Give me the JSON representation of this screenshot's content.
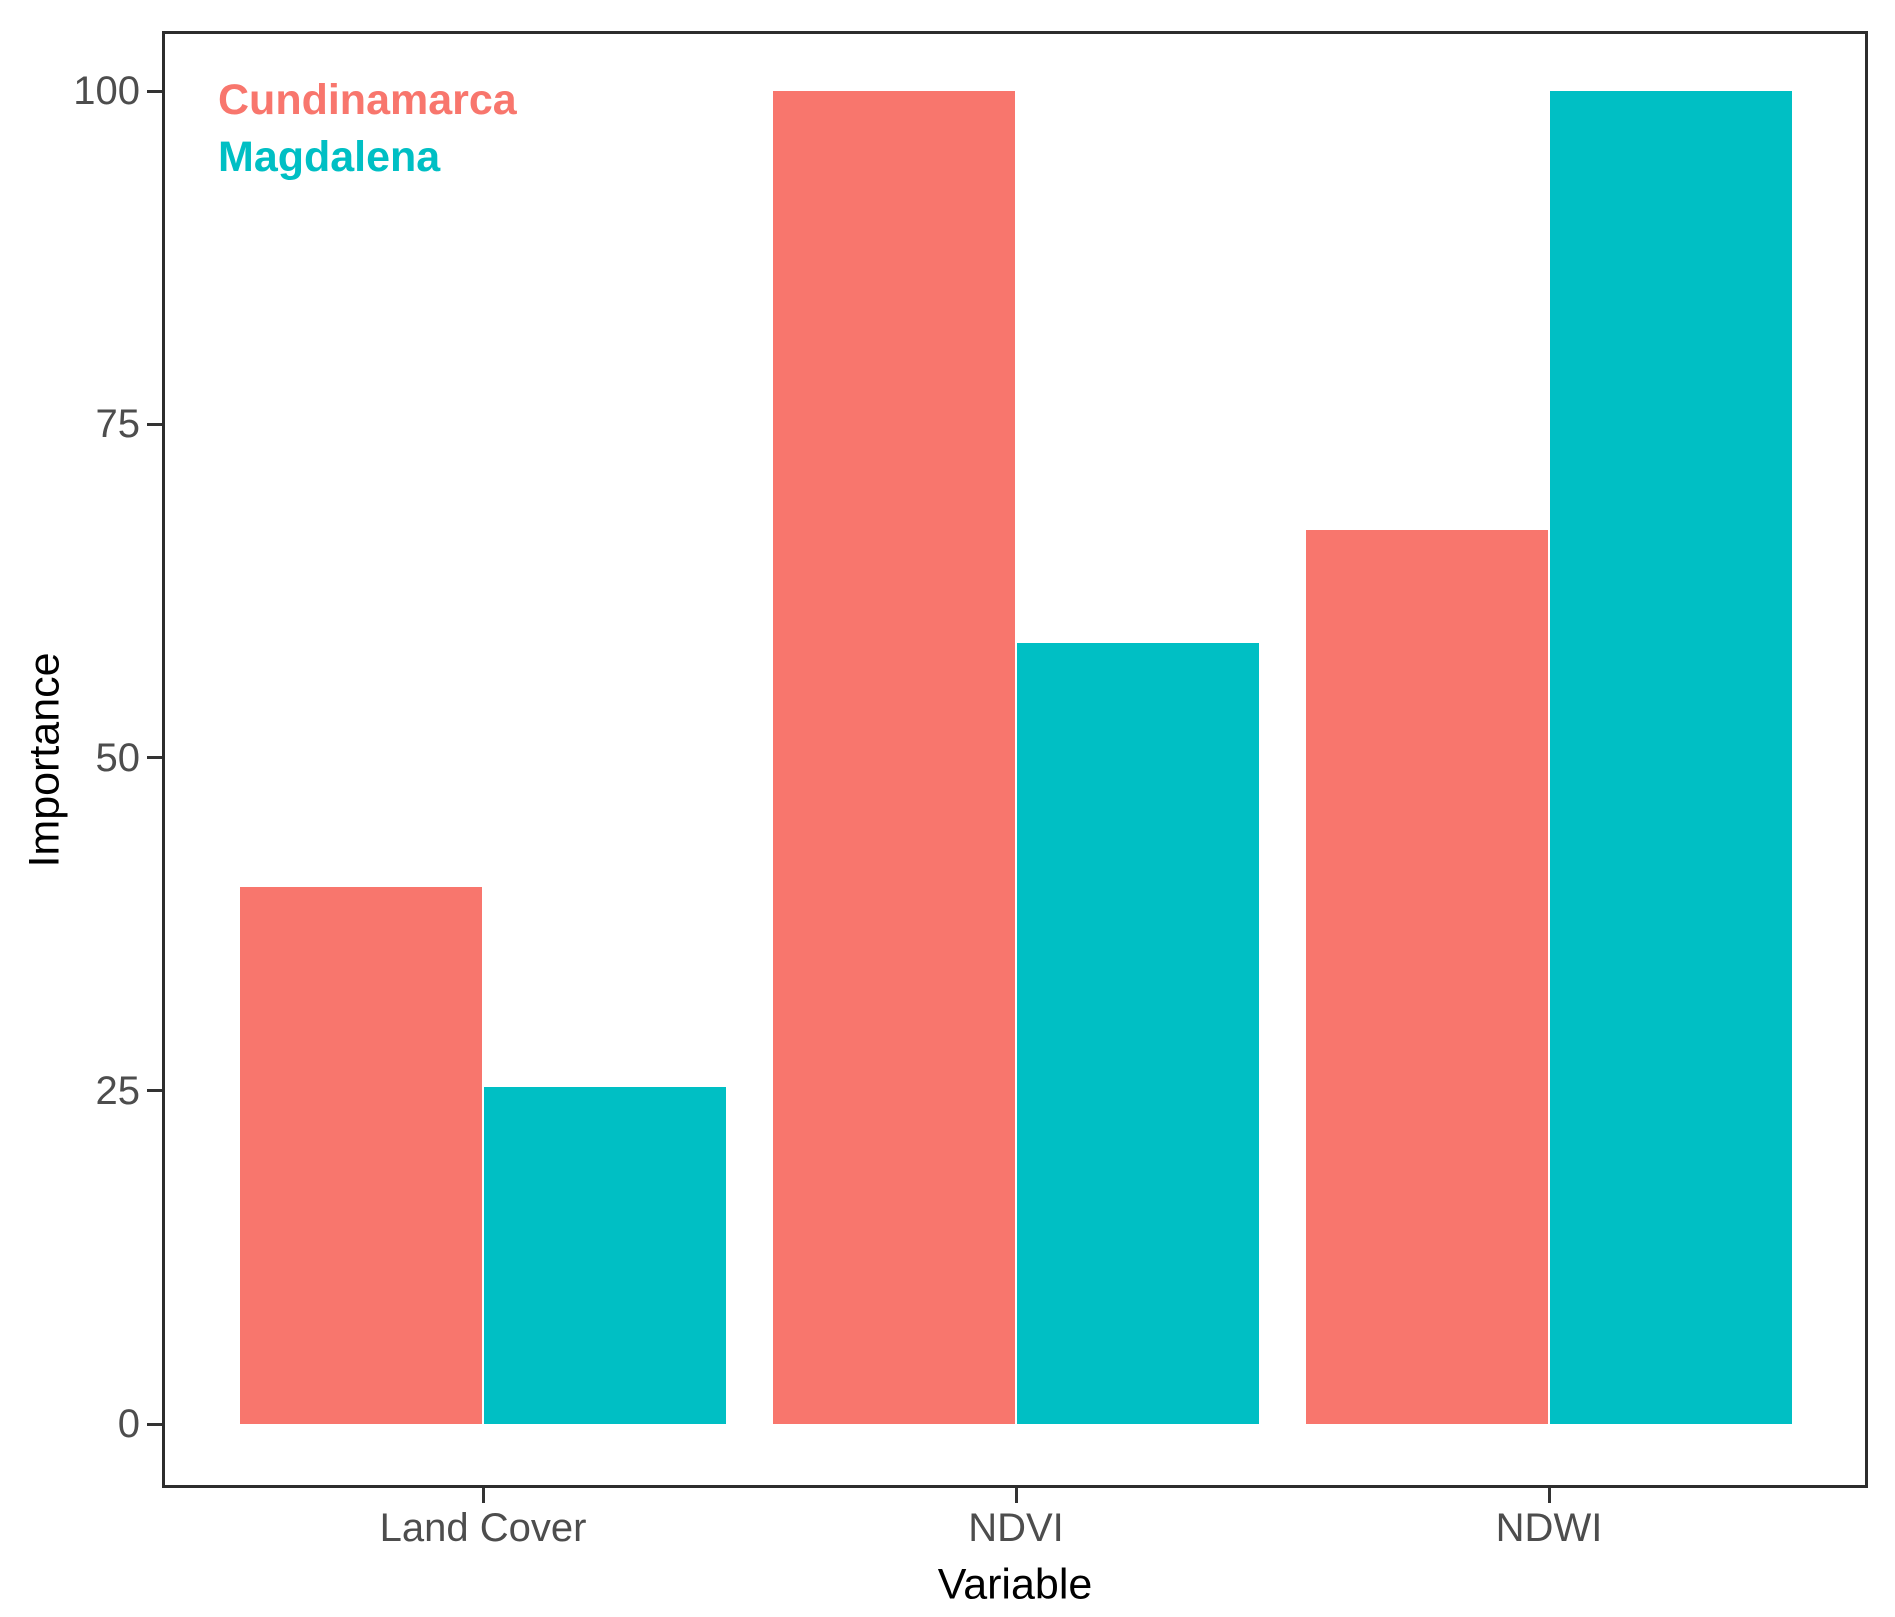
{
  "chart_data": {
    "type": "bar",
    "title": "",
    "categories": [
      "Land Cover",
      "NDVI",
      "NDWI"
    ],
    "series": [
      {
        "name": "Cundinamarca",
        "color": "#F8766D",
        "values": [
          40.3,
          100,
          67.1
        ]
      },
      {
        "name": "Magdalena",
        "color": "#00BFC4",
        "values": [
          25.3,
          58.6,
          100
        ]
      }
    ],
    "xlabel": "Variable",
    "ylabel": "Importance",
    "ylim": [
      0,
      100
    ],
    "yticks": [
      0,
      25,
      50,
      75,
      100
    ],
    "grid": false,
    "legend_position": "top-left-inside",
    "panel_border_color": "#2d2d2d",
    "tick_color": "#333333",
    "tick_label_color": "#4d4d4d",
    "axis_title_color": "#000000",
    "background_color": "#ffffff"
  }
}
